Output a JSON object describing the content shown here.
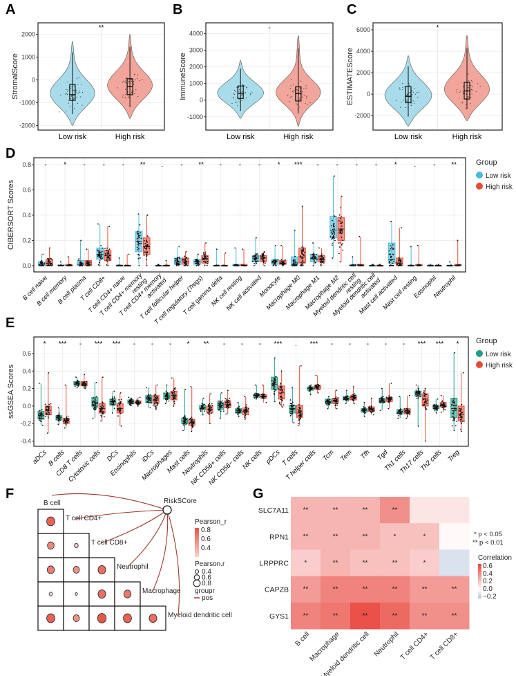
{
  "colors": {
    "violin_low": "#a8dcea",
    "violin_high": "#f2a59a",
    "cib_low": "#4ab9d8",
    "cib_high": "#e84b35",
    "ss_low": "#1f9e86",
    "ss_high": "#e64b35",
    "corr_low": "#b4c3de",
    "corr_mid": "#ffffff",
    "corr_high": "#e8453c",
    "grid": "#ebebeb"
  },
  "panels": {
    "A": "A",
    "B": "B",
    "C": "C",
    "D": "D",
    "E": "E",
    "F": "F",
    "G": "G"
  },
  "violins": [
    {
      "ylabel": "StromalScore",
      "ylim": [
        -2200,
        2500
      ],
      "ticks": [
        -2000,
        -1000,
        0,
        1000,
        2000
      ],
      "signif": "**",
      "categories": [
        "Low risk",
        "High risk"
      ],
      "groups": [
        {
          "box": [
            -1500,
            -900,
            -650,
            -200,
            1200
          ],
          "range": [
            -2000,
            1700
          ]
        },
        {
          "box": [
            -1200,
            -650,
            -300,
            50,
            1450
          ],
          "range": [
            -1700,
            2000
          ]
        }
      ]
    },
    {
      "ylabel": "ImmuneScore",
      "ylim": [
        -1800,
        4650
      ],
      "ticks": [
        -1000,
        0,
        1000,
        2000,
        3000,
        4000
      ],
      "signif": "-",
      "categories": [
        "Low risk",
        "High risk"
      ],
      "groups": [
        {
          "box": [
            -650,
            100,
            400,
            850,
            1900
          ],
          "range": [
            -1100,
            2400
          ]
        },
        {
          "box": [
            -800,
            -50,
            400,
            800,
            3100
          ],
          "range": [
            -1600,
            3900
          ]
        }
      ]
    },
    {
      "ylabel": "ESTIMATEScore",
      "ylim": [
        -3350,
        6650
      ],
      "ticks": [
        -2000,
        0,
        2000,
        4000,
        6000
      ],
      "signif": "*",
      "categories": [
        "Low risk",
        "High risk"
      ],
      "groups": [
        {
          "box": [
            -2100,
            -800,
            -200,
            700,
            2600
          ],
          "range": [
            -3000,
            3600
          ]
        },
        {
          "box": [
            -1400,
            -450,
            300,
            1100,
            4300
          ],
          "range": [
            -2500,
            5500
          ]
        }
      ]
    }
  ],
  "chart_data": [
    {
      "type": "box",
      "ylabel": "CIBERSORT Scores",
      "ylim": [
        -0.05,
        0.855
      ],
      "ticks": [
        0.0,
        0.2,
        0.4,
        0.6,
        0.8
      ],
      "legend": {
        "title": "Group",
        "entries": [
          "Low risk",
          "High risk"
        ],
        "placement": "right"
      },
      "categories": [
        "B cell naive",
        "B cell memory",
        "B cell plasma",
        "T cell CD8+",
        "T cell CD4+ naive",
        "T cell CD4+ memory\nresting",
        "T cell CD4+ memory\nactivated",
        "T cell follicular helper",
        "T cell regulatory (Tregs)",
        "T cell gamma delta",
        "NK cell resting",
        "NK cell activated",
        "Monocyte",
        "Macrophage M0",
        "Macrophage M1",
        "Macrophage M2",
        "Myeloid dendritic cell\nresting",
        "Myeloid dendritic cell\nactivated",
        "Mast cell activated",
        "Mast cell resting",
        "Eosinophil",
        "Neutrophil"
      ],
      "signif": [
        "-",
        "*",
        "-",
        "-",
        "-",
        "**",
        ".",
        "-",
        "**",
        "-",
        "-",
        "-",
        "*",
        "***",
        "-",
        "-",
        "-",
        "-",
        "*",
        ".",
        "-",
        "**"
      ],
      "low": [
        [
          0,
          0,
          0.01,
          0.03,
          0.09
        ],
        [
          0,
          0,
          0,
          0.005,
          0.03
        ],
        [
          0,
          0,
          0.01,
          0.04,
          0.2
        ],
        [
          0,
          0.05,
          0.09,
          0.14,
          0.33
        ],
        [
          0,
          0,
          0,
          0,
          0.06
        ],
        [
          0,
          0.11,
          0.19,
          0.27,
          0.41
        ],
        [
          0,
          0,
          0,
          0,
          0.01
        ],
        [
          0,
          0.01,
          0.03,
          0.06,
          0.15
        ],
        [
          0,
          0.01,
          0.03,
          0.05,
          0.09
        ],
        [
          0,
          0,
          0,
          0,
          0.13
        ],
        [
          0,
          0,
          0,
          0.01,
          0.14
        ],
        [
          0,
          0.03,
          0.06,
          0.08,
          0.22
        ],
        [
          0,
          0.01,
          0.03,
          0.05,
          0.16
        ],
        [
          0,
          0,
          0.01,
          0.07,
          0.28
        ],
        [
          0,
          0.03,
          0.06,
          0.09,
          0.18
        ],
        [
          0.06,
          0.22,
          0.28,
          0.39,
          0.71
        ],
        [
          0,
          0,
          0,
          0.01,
          0.07
        ],
        [
          0,
          0,
          0,
          0,
          0.01
        ],
        [
          0,
          0.02,
          0.05,
          0.18,
          0.35
        ],
        [
          0,
          0,
          0,
          0,
          0.15
        ],
        [
          0,
          0,
          0,
          0,
          0.01
        ],
        [
          0,
          0,
          0,
          0,
          0.03
        ]
      ],
      "high": [
        [
          0,
          0,
          0.02,
          0.05,
          0.14
        ],
        [
          0,
          0,
          0,
          0.01,
          0.07
        ],
        [
          0,
          0,
          0.01,
          0.04,
          0.13
        ],
        [
          0,
          0.04,
          0.08,
          0.12,
          0.31
        ],
        [
          0,
          0,
          0,
          0,
          0.09
        ],
        [
          0,
          0.09,
          0.15,
          0.22,
          0.4
        ],
        [
          0,
          0,
          0,
          0,
          0.04
        ],
        [
          0,
          0.01,
          0.03,
          0.06,
          0.11
        ],
        [
          0,
          0.02,
          0.05,
          0.08,
          0.18
        ],
        [
          0,
          0,
          0,
          0,
          0.1
        ],
        [
          0,
          0,
          0,
          0.01,
          0.13
        ],
        [
          0,
          0.03,
          0.06,
          0.08,
          0.11
        ],
        [
          0,
          0.01,
          0.02,
          0.04,
          0.16
        ],
        [
          0,
          0.02,
          0.07,
          0.14,
          0.47
        ],
        [
          0,
          0.03,
          0.05,
          0.08,
          0.14
        ],
        [
          0.03,
          0.2,
          0.29,
          0.38,
          0.55
        ],
        [
          0,
          0,
          0,
          0.01,
          0.23
        ],
        [
          0,
          0,
          0,
          0,
          0.01
        ],
        [
          0,
          0,
          0.02,
          0.06,
          0.3
        ],
        [
          0,
          0,
          0,
          0.01,
          0.16
        ],
        [
          0,
          0,
          0,
          0,
          0.01
        ],
        [
          0,
          0,
          0,
          0.01,
          0.2
        ]
      ]
    },
    {
      "type": "box",
      "ylabel": "ssGSEA Scores",
      "ylim": [
        -0.46,
        0.79
      ],
      "ticks": [
        -0.4,
        -0.2,
        0.0,
        0.2,
        0.4,
        0.6
      ],
      "legend": {
        "title": "Group",
        "entries": [
          "Low risk",
          "High risk"
        ],
        "placement": "right"
      },
      "categories": [
        "aDCs",
        "B cells",
        "CD8 T cells",
        "Cytotoxic cells",
        "DCs",
        "Eosinophils",
        "iDCs",
        "Macrophages",
        "Mast cells",
        "Neutrophils",
        "NK CD56+ cells",
        "NK CD56− cells",
        "NK cells",
        "pDCs",
        "T cells",
        "T helper cells",
        "Tcm",
        "Tem",
        "Tfh",
        "Tgd",
        "Th1 cells",
        "Th17 cells",
        "Th2 cells",
        "Treg"
      ],
      "signif": [
        "*",
        "***",
        "-",
        "***",
        "***",
        "-",
        "-",
        "-",
        "*",
        "**",
        "-",
        "-",
        "-",
        "***",
        ".",
        "***",
        "-",
        "-",
        "-",
        "-",
        "-",
        "***",
        "***",
        "*"
      ],
      "low": [
        [
          -0.22,
          -0.15,
          -0.11,
          -0.06,
          0.26
        ],
        [
          -0.21,
          -0.16,
          -0.13,
          -0.11,
          -0.02
        ],
        [
          0.21,
          0.24,
          0.26,
          0.28,
          0.33
        ],
        [
          -0.14,
          -0.01,
          0.04,
          0.1,
          0.27
        ],
        [
          -0.08,
          0.01,
          0.05,
          0.08,
          0.17
        ],
        [
          0.01,
          0.03,
          0.05,
          0.07,
          0.1
        ],
        [
          -0.02,
          0.04,
          0.08,
          0.12,
          0.21
        ],
        [
          0.03,
          0.08,
          0.11,
          0.15,
          0.24
        ],
        [
          -0.28,
          -0.2,
          -0.17,
          -0.14,
          0.19
        ],
        [
          -0.1,
          -0.04,
          -0.02,
          0.01,
          0.09
        ],
        [
          -0.14,
          -0.04,
          0.01,
          0.04,
          0.15
        ],
        [
          -0.12,
          -0.08,
          -0.05,
          -0.03,
          0.04
        ],
        [
          0.08,
          0.1,
          0.12,
          0.13,
          0.24
        ],
        [
          0.05,
          0.19,
          0.25,
          0.33,
          0.55
        ],
        [
          -0.19,
          -0.08,
          -0.03,
          0.01,
          0.21
        ],
        [
          0.13,
          0.18,
          0.2,
          0.22,
          0.24
        ],
        [
          -0.03,
          0.03,
          0.05,
          0.08,
          0.11
        ],
        [
          0.03,
          0.07,
          0.09,
          0.11,
          0.18
        ],
        [
          -0.12,
          -0.07,
          -0.05,
          -0.03,
          0.04
        ],
        [
          -0.05,
          0.04,
          0.07,
          0.09,
          0.2
        ],
        [
          -0.14,
          -0.09,
          -0.07,
          -0.04,
          0.11
        ],
        [
          -0.23,
          0.11,
          0.14,
          0.17,
          0.24
        ],
        [
          -0.08,
          -0.03,
          -0.01,
          0.01,
          0.08
        ],
        [
          -0.28,
          -0.13,
          -0.03,
          0.09,
          0.61
        ]
      ],
      "high": [
        [
          -0.31,
          -0.1,
          -0.05,
          0,
          0.38
        ],
        [
          -0.25,
          -0.2,
          -0.17,
          -0.14,
          0.24
        ],
        [
          0.2,
          0.23,
          0.25,
          0.28,
          0.36
        ],
        [
          -0.17,
          -0.08,
          -0.03,
          0.03,
          0.33
        ],
        [
          -0.23,
          -0.08,
          -0.03,
          0.03,
          0.15
        ],
        [
          0,
          0.03,
          0.04,
          0.06,
          0.1
        ],
        [
          -0.04,
          0.03,
          0.07,
          0.12,
          0.24
        ],
        [
          0,
          0.07,
          0.12,
          0.17,
          0.32
        ],
        [
          -0.29,
          -0.22,
          -0.19,
          -0.15,
          0.22
        ],
        [
          -0.2,
          -0.08,
          -0.04,
          0,
          0.14
        ],
        [
          -0.09,
          -0.02,
          0.02,
          0.06,
          0.18
        ],
        [
          -0.15,
          -0.1,
          -0.06,
          -0.02,
          0.11
        ],
        [
          0.04,
          0.09,
          0.11,
          0.13,
          0.24
        ],
        [
          -0.01,
          0.08,
          0.15,
          0.23,
          0.4
        ],
        [
          -0.22,
          -0.13,
          -0.08,
          0.01,
          0.46
        ],
        [
          0.15,
          0.19,
          0.22,
          0.24,
          0.35
        ],
        [
          -0.03,
          0.03,
          0.06,
          0.09,
          0.18
        ],
        [
          0.03,
          0.07,
          0.1,
          0.12,
          0.22
        ],
        [
          -0.1,
          -0.06,
          -0.04,
          -0.01,
          0.09
        ],
        [
          -0.03,
          0.05,
          0.08,
          0.1,
          0.26
        ],
        [
          -0.14,
          -0.09,
          -0.06,
          -0.03,
          0.12
        ],
        [
          -0.4,
          0,
          0.08,
          0.14,
          0.2
        ],
        [
          -0.07,
          -0.01,
          0.01,
          0.04,
          0.12
        ],
        [
          -0.29,
          -0.17,
          -0.1,
          0,
          0.38
        ]
      ]
    },
    {
      "type": "corrplot",
      "node": "RiskSCore",
      "variables": [
        "B cell",
        "T cell CD4+",
        "T cell CD8+",
        "Neutrophil",
        "Macrophage",
        "Myeloid dendritic cell"
      ],
      "lower_r": [
        [
          0.7
        ],
        [
          0.55,
          0.25
        ],
        [
          0.6,
          0.5,
          0.65
        ],
        [
          0.2,
          0.1,
          0.65,
          0.6
        ],
        [
          0.7,
          0.5,
          0.75,
          0.7,
          0.65
        ]
      ],
      "legend": {
        "fill_title": "Pearson_r",
        "fill_ticks": [
          "0.8",
          "0.6",
          "0.4"
        ],
        "size_title": "Pearson.r",
        "size_ticks": [
          "0.4",
          "0.6",
          "0.8"
        ],
        "line_title": "groupr",
        "line_entry": "pos"
      }
    },
    {
      "type": "heatmap",
      "rows": [
        "SLC7A11",
        "RPN1",
        "LRPPRC",
        "CAPZB",
        "GYS1"
      ],
      "columns": [
        "B cell",
        "Macrophage",
        "Myeloid dendritic cell",
        "Neutrophil",
        "T cell CD4+",
        "T cell CD8+"
      ],
      "values": [
        [
          0.3,
          0.3,
          0.3,
          0.45,
          0.1,
          0.1
        ],
        [
          0.3,
          0.3,
          0.3,
          0.25,
          0.25,
          0.02
        ],
        [
          0.2,
          0.3,
          0.25,
          0.25,
          0.2,
          -0.1
        ],
        [
          0.4,
          0.5,
          0.5,
          0.5,
          0.4,
          0.4
        ],
        [
          0.5,
          0.55,
          0.7,
          0.6,
          0.45,
          0.45
        ]
      ],
      "signif": [
        [
          "**",
          "**",
          "**",
          "**",
          "",
          ""
        ],
        [
          "**",
          "**",
          "**",
          "*",
          "*",
          ""
        ],
        [
          "*",
          "**",
          "**",
          "**",
          "*",
          ""
        ],
        [
          "**",
          "**",
          "**",
          "**",
          "**",
          "**"
        ],
        [
          "**",
          "**",
          "**",
          "**",
          "**",
          "**"
        ]
      ],
      "legend": {
        "p1": "* p < 0.05",
        "p2": "** p < 0.01",
        "title": "Correlation",
        "ticks": [
          "0.6",
          "0.4",
          "0.2",
          "0.0",
          "−0.2"
        ],
        "range": [
          -0.2,
          0.6
        ]
      }
    }
  ]
}
